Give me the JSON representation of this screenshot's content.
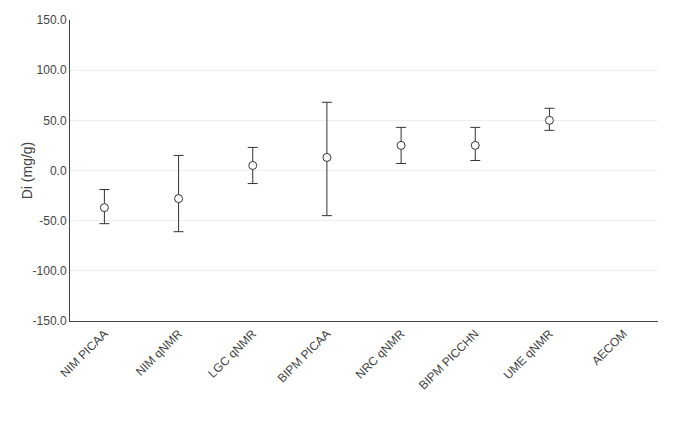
{
  "chart_data": {
    "type": "scatter",
    "categories": [
      "NIM PICAA",
      "NIM qNMR",
      "LGC qNMR",
      "BIPM PICAA",
      "NRC qNMR",
      "BIPM PICCHN",
      "UME qNMR",
      "AECOM"
    ],
    "values": [
      -37.0,
      -28.0,
      5.0,
      13.0,
      25.0,
      25.0,
      50.0,
      null
    ],
    "yerr_upper": [
      18.0,
      43.0,
      18.0,
      55.0,
      18.0,
      18.0,
      12.0,
      null
    ],
    "yerr_lower": [
      16.0,
      33.0,
      18.0,
      58.0,
      18.0,
      15.0,
      10.0,
      null
    ],
    "ylabel": "Di (mg/g)",
    "ylim": [
      -150.0,
      150.0
    ],
    "yticks": [
      {
        "value": -150,
        "label": "-150.0"
      },
      {
        "value": -100,
        "label": "-100.0"
      },
      {
        "value": -50,
        "label": "-50.0"
      },
      {
        "value": 0,
        "label": "0.0"
      },
      {
        "value": 50,
        "label": "50.0"
      },
      {
        "value": 100,
        "label": "100.0"
      },
      {
        "value": 150,
        "label": "150.0"
      }
    ],
    "color": "#333333",
    "marker": "circle",
    "grid": true
  }
}
